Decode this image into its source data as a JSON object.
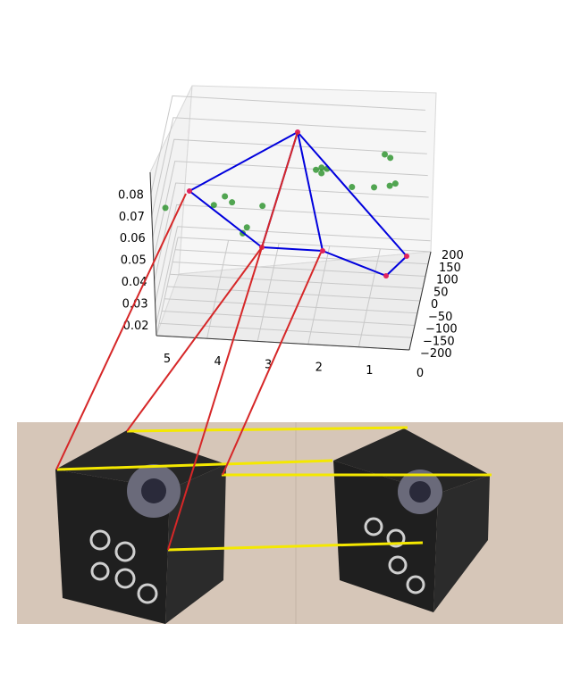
{
  "chart_data": {
    "type": "scatter",
    "projection": "3d",
    "grid": true,
    "z_ticks": [
      "0.02",
      "0.03",
      "0.04",
      "0.05",
      "0.06",
      "0.07",
      "0.08"
    ],
    "x_ticks": [
      "5",
      "4",
      "3",
      "2",
      "1",
      "0"
    ],
    "y_ticks": [
      "200",
      "150",
      "100",
      "50",
      "0",
      "−50",
      "−100",
      "−150",
      "−200"
    ],
    "camera_points": [
      {
        "x": 4.6,
        "y": -180,
        "z": 0.08
      },
      {
        "x": 2.6,
        "y": -110,
        "z": 0.087
      },
      {
        "x": 3.1,
        "y": -20,
        "z": 0.058
      },
      {
        "x": 2.3,
        "y": 60,
        "z": 0.055
      },
      {
        "x": 0.6,
        "y": 120,
        "z": 0.051
      },
      {
        "x": 0.2,
        "y": 180,
        "z": 0.057
      }
    ],
    "feature_points": [
      {
        "x": 3.9,
        "y": -90,
        "z": 0.064
      },
      {
        "x": 3.7,
        "y": -70,
        "z": 0.066
      },
      {
        "x": 4.9,
        "y": -60,
        "z": 0.058
      },
      {
        "x": 3.6,
        "y": -40,
        "z": 0.06
      },
      {
        "x": 3.4,
        "y": 20,
        "z": 0.042
      },
      {
        "x": 3.5,
        "y": 30,
        "z": 0.038
      },
      {
        "x": 3.1,
        "y": 40,
        "z": 0.05
      },
      {
        "x": 2.1,
        "y": 110,
        "z": 0.06
      },
      {
        "x": 2.0,
        "y": 120,
        "z": 0.06
      },
      {
        "x": 1.9,
        "y": 125,
        "z": 0.059
      },
      {
        "x": 2.0,
        "y": 115,
        "z": 0.058
      },
      {
        "x": 1.4,
        "y": 110,
        "z": 0.053
      },
      {
        "x": 1.0,
        "y": 140,
        "z": 0.05
      },
      {
        "x": 0.7,
        "y": 150,
        "z": 0.05
      },
      {
        "x": 0.6,
        "y": 160,
        "z": 0.05
      },
      {
        "x": 0.8,
        "y": 170,
        "z": 0.062
      },
      {
        "x": 0.7,
        "y": 175,
        "z": 0.06
      }
    ],
    "colors": {
      "pyramid": "#0000dd",
      "camera_points": "#e0245e",
      "feature_points": "#1a8a1a",
      "red_lines": "#d62728",
      "yellow_lines": "#f4e800"
    },
    "photo": {
      "colors": {
        "background": "#d6c6b8",
        "box": "#1f1f1f",
        "box_side": "#2b2b2b",
        "lens": "#6a6a7a"
      }
    }
  }
}
